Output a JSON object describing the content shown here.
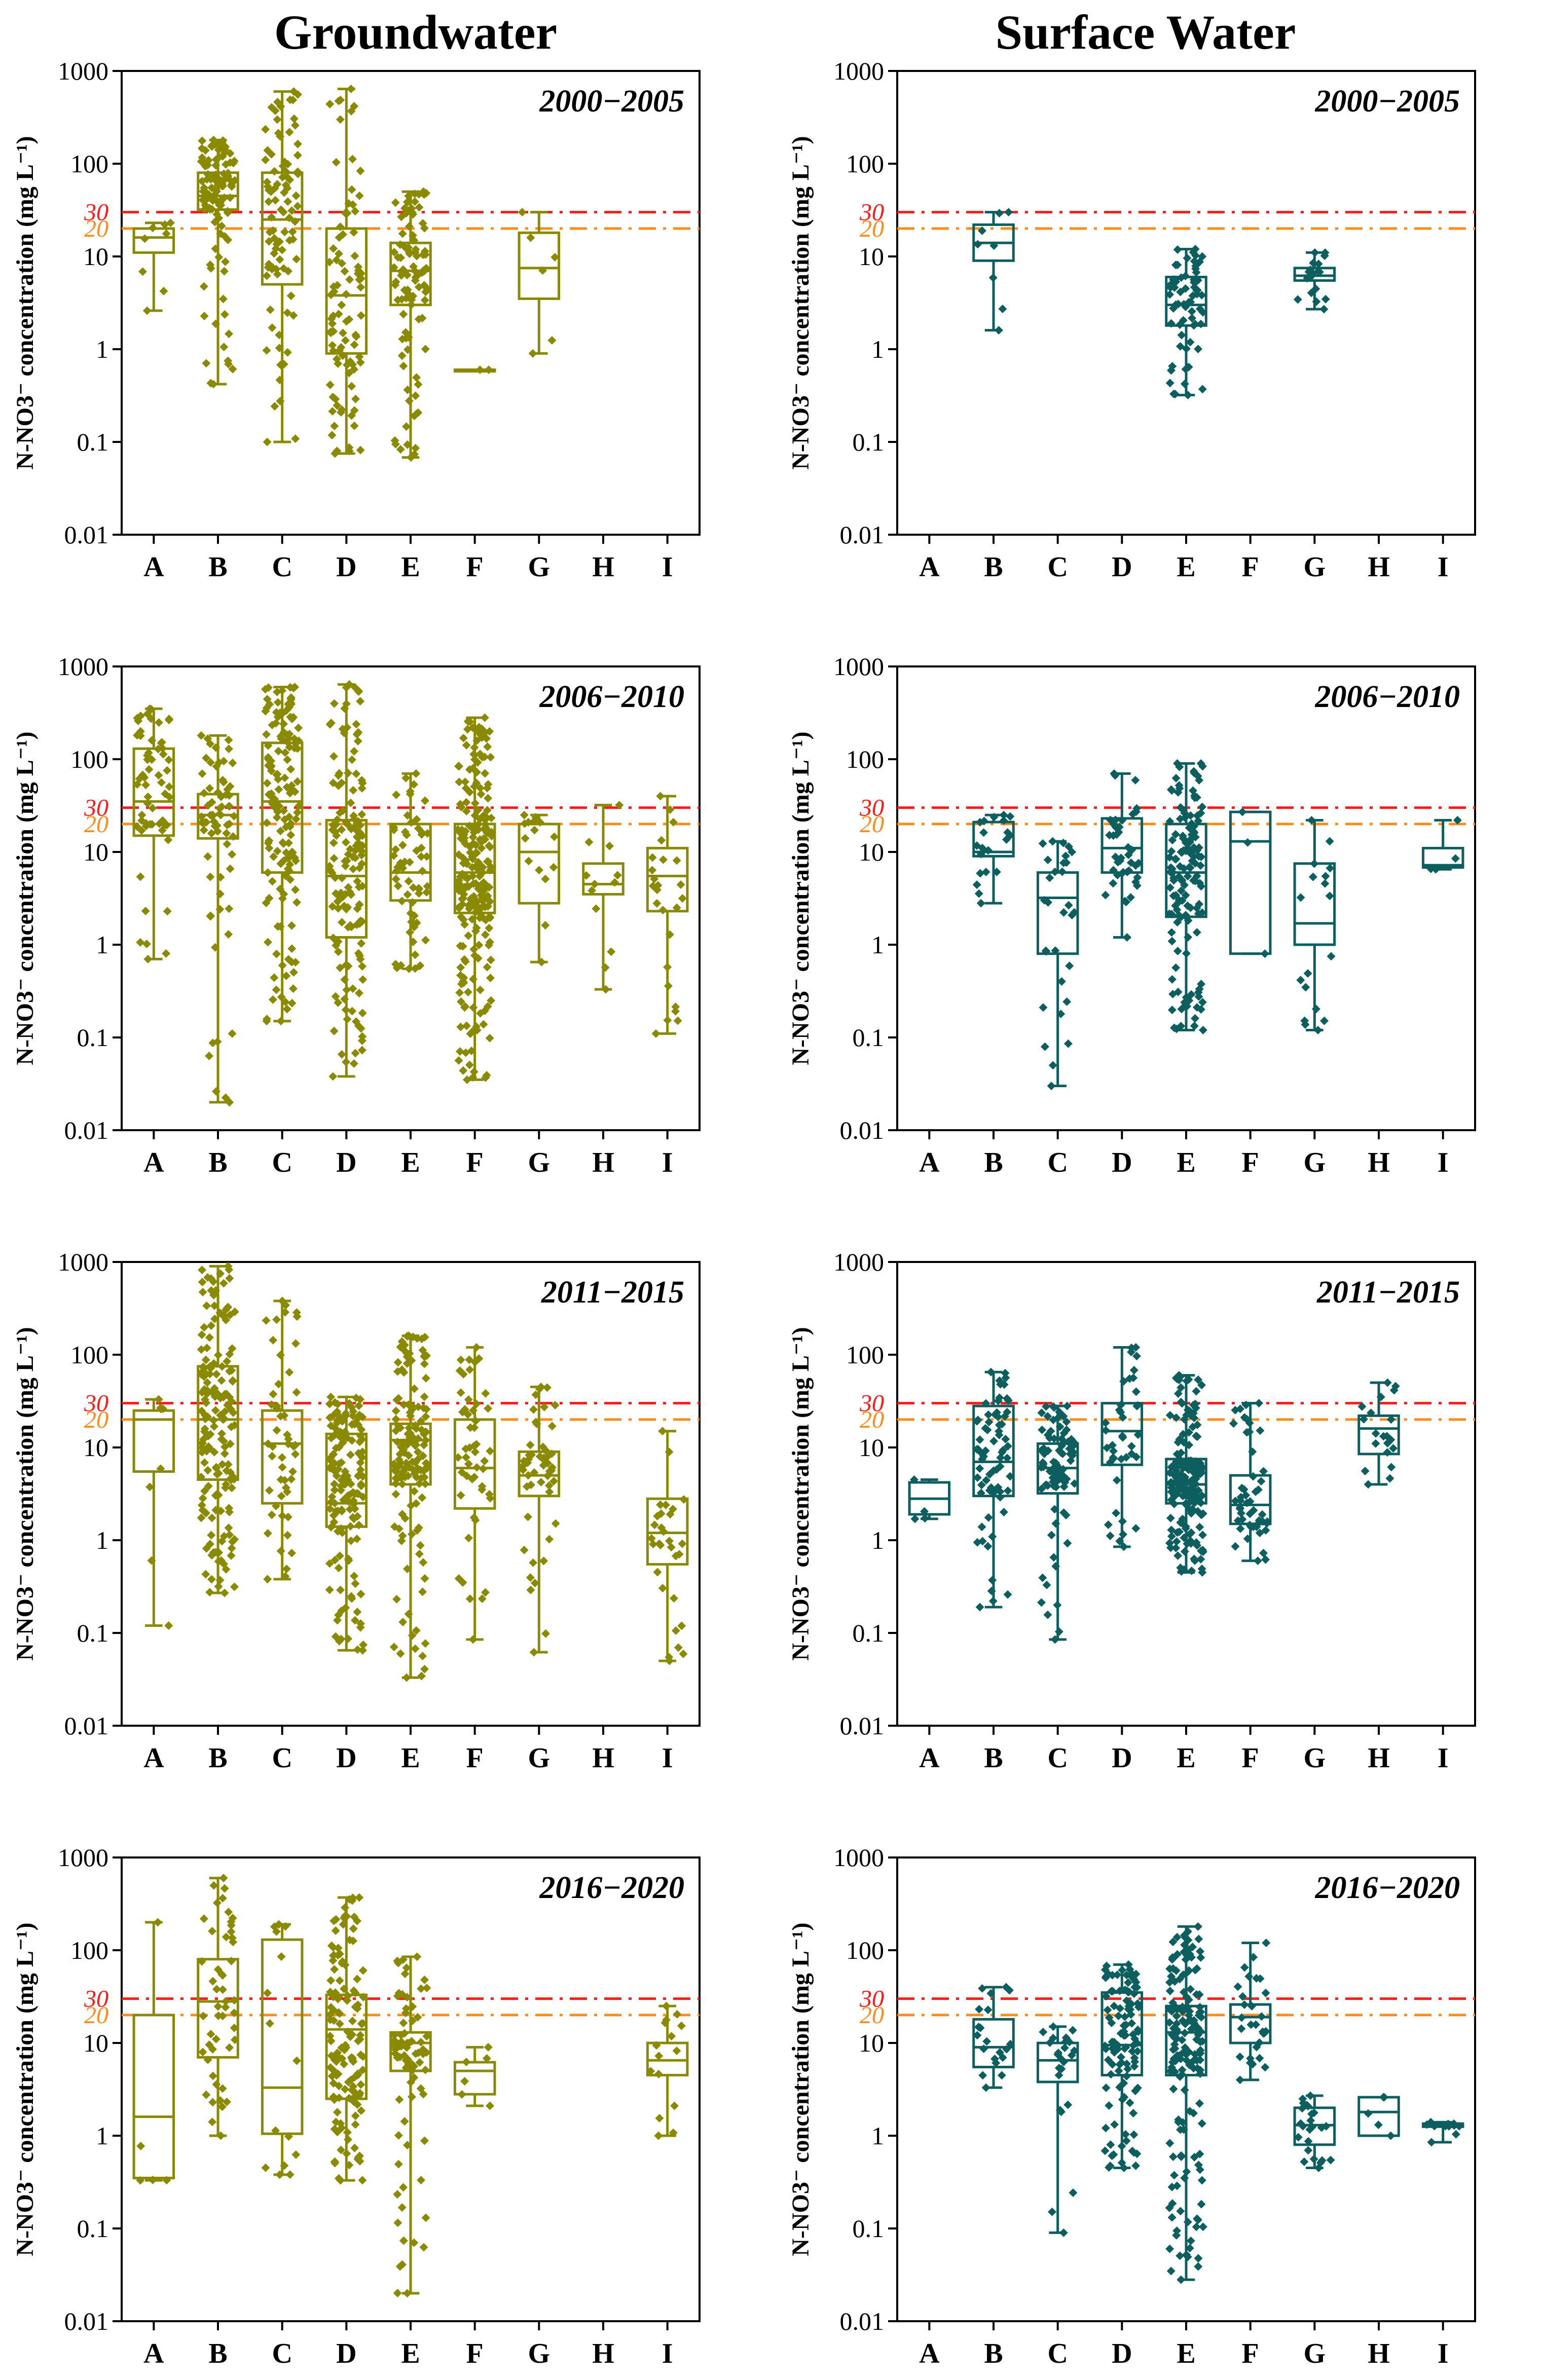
{
  "headers": {
    "left": "Groundwater",
    "right": "Surface Water"
  },
  "colors": {
    "groundwater": "#8a8a00",
    "surface": "#0d5e5e",
    "threshold_30": "#ff1a1a",
    "threshold_20": "#ff8c1a"
  },
  "chart_data": [
    {
      "type": "box",
      "title": "2000−2005",
      "series_name": "Groundwater",
      "ylabel": "N-NO3⁻ concentration (mg L⁻¹)",
      "yscale": "log",
      "ylim": [
        0.01,
        1000
      ],
      "yticks": [
        "0.01",
        "0.1",
        "1",
        "10",
        "100",
        "1000"
      ],
      "categories": [
        "A",
        "B",
        "C",
        "D",
        "E",
        "F",
        "G",
        "H",
        "I"
      ],
      "thresholds": [
        {
          "value": 30,
          "label": "30"
        },
        {
          "value": 20,
          "label": "20"
        }
      ],
      "boxes": [
        {
          "cat": "A",
          "min": 2.6,
          "q1": 11,
          "med": 16,
          "q3": 20,
          "max": 23,
          "n": 8
        },
        {
          "cat": "B",
          "min": 0.42,
          "q1": 32,
          "med": 45,
          "q3": 80,
          "max": 180,
          "n": 110
        },
        {
          "cat": "C",
          "min": 0.1,
          "q1": 5,
          "med": 25,
          "q3": 80,
          "max": 600,
          "n": 90
        },
        {
          "cat": "D",
          "min": 0.075,
          "q1": 0.9,
          "med": 3.8,
          "q3": 20,
          "max": 640,
          "n": 90
        },
        {
          "cat": "E",
          "min": 0.068,
          "q1": 3,
          "med": 7,
          "q3": 14,
          "max": 50,
          "n": 100
        },
        {
          "cat": "F",
          "min": 0.6,
          "q1": 0.6,
          "med": 0.6,
          "q3": 0.6,
          "max": 0.6,
          "n": 2
        },
        {
          "cat": "G",
          "min": 0.9,
          "q1": 3.5,
          "med": 7.5,
          "q3": 18,
          "max": 30,
          "n": 6
        }
      ]
    },
    {
      "type": "box",
      "title": "2000−2005",
      "series_name": "Surface Water",
      "ylabel": "N-NO3⁻ concentration (mg L⁻¹)",
      "yscale": "log",
      "ylim": [
        0.01,
        1000
      ],
      "yticks": [
        "0.01",
        "0.1",
        "1",
        "10",
        "100",
        "1000"
      ],
      "categories": [
        "A",
        "B",
        "C",
        "D",
        "E",
        "F",
        "G",
        "H",
        "I"
      ],
      "thresholds": [
        {
          "value": 30,
          "label": "30"
        },
        {
          "value": 20,
          "label": "20"
        }
      ],
      "boxes": [
        {
          "cat": "B",
          "min": 1.6,
          "q1": 9,
          "med": 14,
          "q3": 22,
          "max": 30,
          "n": 8
        },
        {
          "cat": "E",
          "min": 0.32,
          "q1": 1.8,
          "med": 3,
          "q3": 6,
          "max": 12,
          "n": 70
        },
        {
          "cat": "G",
          "min": 2.7,
          "q1": 5.5,
          "med": 6.2,
          "q3": 7.5,
          "max": 11,
          "n": 18
        }
      ]
    },
    {
      "type": "box",
      "title": "2006−2010",
      "series_name": "Groundwater",
      "ylabel": "N-NO3⁻ concentration (mg L⁻¹)",
      "yscale": "log",
      "ylim": [
        0.01,
        1000
      ],
      "yticks": [
        "0.01",
        "0.1",
        "1",
        "10",
        "100",
        "1000"
      ],
      "categories": [
        "A",
        "B",
        "C",
        "D",
        "E",
        "F",
        "G",
        "H",
        "I"
      ],
      "thresholds": [
        {
          "value": 30,
          "label": "30"
        },
        {
          "value": 20,
          "label": "20"
        }
      ],
      "boxes": [
        {
          "cat": "A",
          "min": 0.7,
          "q1": 15,
          "med": 35,
          "q3": 130,
          "max": 350,
          "n": 60
        },
        {
          "cat": "B",
          "min": 0.02,
          "q1": 14,
          "med": 25,
          "q3": 42,
          "max": 180,
          "n": 70
        },
        {
          "cat": "C",
          "min": 0.15,
          "q1": 6,
          "med": 35,
          "q3": 150,
          "max": 600,
          "n": 150
        },
        {
          "cat": "D",
          "min": 0.038,
          "q1": 1.2,
          "med": 5.5,
          "q3": 22,
          "max": 640,
          "n": 150
        },
        {
          "cat": "E",
          "min": 0.55,
          "q1": 3,
          "med": 6,
          "q3": 20,
          "max": 70,
          "n": 60
        },
        {
          "cat": "F",
          "min": 0.035,
          "q1": 2.2,
          "med": 6,
          "q3": 20,
          "max": 280,
          "n": 250
        },
        {
          "cat": "G",
          "min": 0.65,
          "q1": 2.8,
          "med": 10,
          "q3": 20,
          "max": 25,
          "n": 15
        },
        {
          "cat": "H",
          "min": 0.33,
          "q1": 3.5,
          "med": 4.5,
          "q3": 7.5,
          "max": 32,
          "n": 12
        },
        {
          "cat": "I",
          "min": 0.11,
          "q1": 2.3,
          "med": 5.5,
          "q3": 11,
          "max": 40,
          "n": 25
        }
      ]
    },
    {
      "type": "box",
      "title": "2006−2010",
      "series_name": "Surface Water",
      "ylabel": "N-NO3⁻ concentration (mg L⁻¹)",
      "yscale": "log",
      "ylim": [
        0.01,
        1000
      ],
      "yticks": [
        "0.01",
        "0.1",
        "1",
        "10",
        "100",
        "1000"
      ],
      "categories": [
        "A",
        "B",
        "C",
        "D",
        "E",
        "F",
        "G",
        "H",
        "I"
      ],
      "thresholds": [
        {
          "value": 30,
          "label": "30"
        },
        {
          "value": 20,
          "label": "20"
        }
      ],
      "boxes": [
        {
          "cat": "B",
          "min": 2.8,
          "q1": 9,
          "med": 10,
          "q3": 21,
          "max": 25,
          "n": 20
        },
        {
          "cat": "C",
          "min": 0.03,
          "q1": 0.8,
          "med": 3.2,
          "q3": 6,
          "max": 13,
          "n": 30
        },
        {
          "cat": "D",
          "min": 1.2,
          "q1": 6,
          "med": 11,
          "q3": 23,
          "max": 70,
          "n": 40
        },
        {
          "cat": "E",
          "min": 0.12,
          "q1": 2,
          "med": 6,
          "q3": 20,
          "max": 90,
          "n": 140
        },
        {
          "cat": "F",
          "min": 0.8,
          "q1": 0.8,
          "med": 13,
          "q3": 27,
          "max": 27,
          "n": 3
        },
        {
          "cat": "G",
          "min": 0.12,
          "q1": 1,
          "med": 1.7,
          "q3": 7.5,
          "max": 22,
          "n": 18
        },
        {
          "cat": "I",
          "min": 6.5,
          "q1": 6.8,
          "med": 7.2,
          "q3": 11,
          "max": 22,
          "n": 4
        }
      ]
    },
    {
      "type": "box",
      "title": "2011−2015",
      "series_name": "Groundwater",
      "ylabel": "N-NO3⁻ concentration (mg L⁻¹)",
      "yscale": "log",
      "ylim": [
        0.01,
        1000
      ],
      "yticks": [
        "0.01",
        "0.1",
        "1",
        "10",
        "100",
        "1000"
      ],
      "categories": [
        "A",
        "B",
        "C",
        "D",
        "E",
        "F",
        "G",
        "H",
        "I"
      ],
      "thresholds": [
        {
          "value": 30,
          "label": "30"
        },
        {
          "value": 20,
          "label": "20"
        }
      ],
      "boxes": [
        {
          "cat": "A",
          "min": 0.12,
          "q1": 5.5,
          "med": 20,
          "q3": 25,
          "max": 33,
          "n": 8
        },
        {
          "cat": "B",
          "min": 0.27,
          "q1": 4.5,
          "med": 20,
          "q3": 75,
          "max": 900,
          "n": 170
        },
        {
          "cat": "C",
          "min": 0.38,
          "q1": 2.5,
          "med": 11,
          "q3": 25,
          "max": 380,
          "n": 50
        },
        {
          "cat": "D",
          "min": 0.065,
          "q1": 1.4,
          "med": 2.5,
          "q3": 14,
          "max": 35,
          "n": 150
        },
        {
          "cat": "E",
          "min": 0.033,
          "q1": 4,
          "med": 12,
          "q3": 18,
          "max": 160,
          "n": 150
        },
        {
          "cat": "F",
          "min": 0.085,
          "q1": 2.2,
          "med": 6,
          "q3": 20,
          "max": 120,
          "n": 50
        },
        {
          "cat": "G",
          "min": 0.062,
          "q1": 3,
          "med": 5,
          "q3": 9,
          "max": 45,
          "n": 50
        },
        {
          "cat": "I",
          "min": 0.05,
          "q1": 0.55,
          "med": 1.2,
          "q3": 2.8,
          "max": 15,
          "n": 30
        }
      ]
    },
    {
      "type": "box",
      "title": "2011−2015",
      "series_name": "Surface Water",
      "ylabel": "N-NO3⁻ concentration (mg L⁻¹)",
      "yscale": "log",
      "ylim": [
        0.01,
        1000
      ],
      "yticks": [
        "0.01",
        "0.1",
        "1",
        "10",
        "100",
        "1000"
      ],
      "categories": [
        "A",
        "B",
        "C",
        "D",
        "E",
        "F",
        "G",
        "H",
        "I"
      ],
      "thresholds": [
        {
          "value": 30,
          "label": "30"
        },
        {
          "value": 20,
          "label": "20"
        }
      ],
      "boxes": [
        {
          "cat": "A",
          "min": 1.7,
          "q1": 1.9,
          "med": 2.8,
          "q3": 4.2,
          "max": 4.5,
          "n": 4
        },
        {
          "cat": "B",
          "min": 0.19,
          "q1": 3,
          "med": 7,
          "q3": 28,
          "max": 65,
          "n": 70
        },
        {
          "cat": "C",
          "min": 0.085,
          "q1": 3.2,
          "med": 6,
          "q3": 11,
          "max": 28,
          "n": 90
        },
        {
          "cat": "D",
          "min": 0.85,
          "q1": 6.5,
          "med": 15,
          "q3": 30,
          "max": 120,
          "n": 40
        },
        {
          "cat": "E",
          "min": 0.45,
          "q1": 2.5,
          "med": 4,
          "q3": 7.5,
          "max": 60,
          "n": 180
        },
        {
          "cat": "F",
          "min": 0.6,
          "q1": 1.5,
          "med": 2.4,
          "q3": 5,
          "max": 30,
          "n": 50
        },
        {
          "cat": "H",
          "min": 4,
          "q1": 8.5,
          "med": 16,
          "q3": 22,
          "max": 50,
          "n": 20
        }
      ]
    },
    {
      "type": "box",
      "title": "2016−2020",
      "series_name": "Groundwater",
      "ylabel": "N-NO3⁻ concentration (mg L⁻¹)",
      "yscale": "log",
      "ylim": [
        0.01,
        1000
      ],
      "yticks": [
        "0.01",
        "0.1",
        "1",
        "10",
        "100",
        "1000"
      ],
      "categories": [
        "A",
        "B",
        "C",
        "D",
        "E",
        "F",
        "G",
        "H",
        "I"
      ],
      "thresholds": [
        {
          "value": 30,
          "label": "30"
        },
        {
          "value": 20,
          "label": "20"
        }
      ],
      "boxes": [
        {
          "cat": "A",
          "min": 0.33,
          "q1": 0.35,
          "med": 1.6,
          "q3": 20,
          "max": 200,
          "n": 5
        },
        {
          "cat": "B",
          "min": 1,
          "q1": 7,
          "med": 28,
          "q3": 80,
          "max": 600,
          "n": 50
        },
        {
          "cat": "C",
          "min": 0.38,
          "q1": 1.05,
          "med": 3.3,
          "q3": 130,
          "max": 190,
          "n": 15
        },
        {
          "cat": "D",
          "min": 0.33,
          "q1": 2.5,
          "med": 14,
          "q3": 33,
          "max": 370,
          "n": 140
        },
        {
          "cat": "E",
          "min": 0.02,
          "q1": 5,
          "med": 10,
          "q3": 13,
          "max": 85,
          "n": 80
        },
        {
          "cat": "F",
          "min": 2.1,
          "q1": 2.8,
          "med": 5,
          "q3": 6.2,
          "max": 9,
          "n": 6
        },
        {
          "cat": "I",
          "min": 1,
          "q1": 4.5,
          "med": 6.5,
          "q3": 10,
          "max": 25,
          "n": 15
        }
      ]
    },
    {
      "type": "box",
      "title": "2016−2020",
      "series_name": "Surface Water",
      "ylabel": "N-NO3⁻ concentration (mg L⁻¹)",
      "yscale": "log",
      "ylim": [
        0.01,
        1000
      ],
      "yticks": [
        "0.01",
        "0.1",
        "1",
        "10",
        "100",
        "1000"
      ],
      "categories": [
        "A",
        "B",
        "C",
        "D",
        "E",
        "F",
        "G",
        "H",
        "I"
      ],
      "thresholds": [
        {
          "value": 30,
          "label": "30"
        },
        {
          "value": 20,
          "label": "20"
        }
      ],
      "boxes": [
        {
          "cat": "B",
          "min": 3.3,
          "q1": 5.5,
          "med": 9,
          "q3": 18,
          "max": 40,
          "n": 20
        },
        {
          "cat": "C",
          "min": 0.09,
          "q1": 3.8,
          "med": 6.5,
          "q3": 10,
          "max": 15,
          "n": 25
        },
        {
          "cat": "D",
          "min": 0.45,
          "q1": 4.5,
          "med": 9.5,
          "q3": 35,
          "max": 70,
          "n": 110
        },
        {
          "cat": "E",
          "min": 0.028,
          "q1": 4.5,
          "med": 13,
          "q3": 25,
          "max": 180,
          "n": 170
        },
        {
          "cat": "F",
          "min": 4,
          "q1": 10,
          "med": 19,
          "q3": 26,
          "max": 120,
          "n": 30
        },
        {
          "cat": "G",
          "min": 0.45,
          "q1": 0.8,
          "med": 1.3,
          "q3": 2,
          "max": 2.7,
          "n": 25
        },
        {
          "cat": "H",
          "min": 1,
          "q1": 1,
          "med": 1.8,
          "q3": 2.6,
          "max": 2.6,
          "n": 5
        },
        {
          "cat": "I",
          "min": 0.85,
          "q1": 1.25,
          "med": 1.3,
          "q3": 1.35,
          "max": 1.4,
          "n": 12
        }
      ]
    }
  ]
}
